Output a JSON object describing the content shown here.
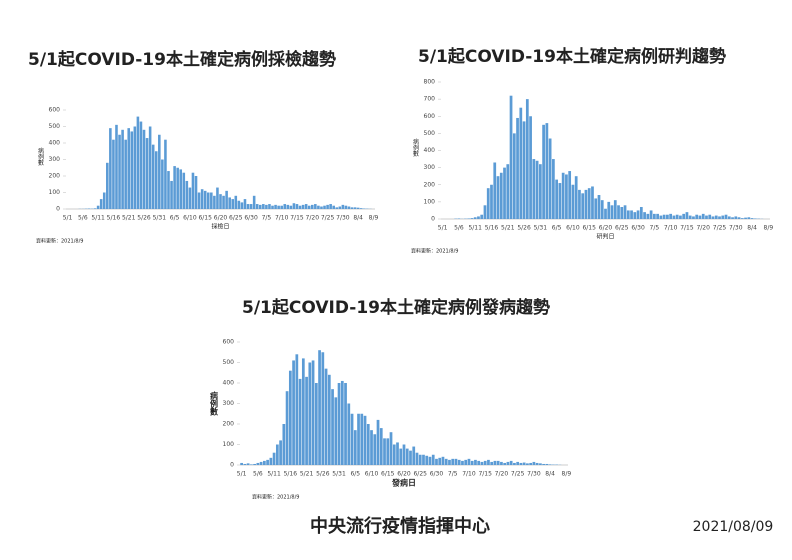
{
  "chart_data": [
    {
      "type": "bar",
      "title": "5/1起COVID-19本土確定病例採檢趨勢",
      "xlabel": "採檢日",
      "ylabel": "病例數",
      "note": "資料更新：2021/8/9",
      "color": "#5b9bd5",
      "categories": [
        "5/1",
        null,
        null,
        null,
        null,
        "5/6",
        null,
        null,
        null,
        null,
        "5/11",
        null,
        null,
        null,
        null,
        "5/16",
        null,
        null,
        null,
        null,
        "5/21",
        null,
        null,
        null,
        null,
        "5/26",
        null,
        null,
        null,
        null,
        "5/31",
        null,
        null,
        null,
        null,
        "6/5",
        null,
        null,
        null,
        null,
        "6/10",
        null,
        null,
        null,
        null,
        "6/15",
        null,
        null,
        null,
        null,
        "6/20",
        null,
        null,
        null,
        null,
        "6/25",
        null,
        null,
        null,
        null,
        "6/30",
        null,
        null,
        null,
        null,
        "7/5",
        null,
        null,
        null,
        null,
        "7/10",
        null,
        null,
        null,
        null,
        "7/15",
        null,
        null,
        null,
        null,
        "7/20",
        null,
        null,
        null,
        null,
        "7/25",
        null,
        null,
        null,
        null,
        "7/30",
        null,
        null,
        null,
        null,
        "8/4",
        null,
        null,
        null,
        null,
        "8/9"
      ],
      "values": [
        0,
        0,
        0,
        0,
        1,
        1,
        2,
        3,
        2,
        4,
        20,
        60,
        100,
        280,
        490,
        420,
        510,
        450,
        480,
        420,
        490,
        470,
        500,
        560,
        530,
        480,
        430,
        500,
        390,
        350,
        450,
        300,
        420,
        230,
        170,
        260,
        250,
        240,
        220,
        170,
        130,
        220,
        200,
        100,
        120,
        110,
        100,
        100,
        80,
        130,
        90,
        80,
        110,
        70,
        60,
        80,
        50,
        40,
        60,
        30,
        30,
        80,
        30,
        25,
        30,
        25,
        30,
        20,
        25,
        20,
        20,
        30,
        25,
        20,
        35,
        30,
        20,
        25,
        30,
        20,
        25,
        30,
        20,
        15,
        20,
        25,
        30,
        20,
        10,
        15,
        25,
        20,
        15,
        10,
        10,
        8,
        5,
        3,
        2,
        1,
        0
      ],
      "ylim": [
        0,
        600
      ],
      "yticks": [
        0,
        100,
        200,
        300,
        400,
        500,
        600
      ]
    },
    {
      "type": "bar",
      "title": "5/1起COVID-19本土確定病例研判趨勢",
      "xlabel": "研判日",
      "ylabel": "病例數",
      "note": "資料更新：2021/8/9",
      "color": "#5b9bd5",
      "categories": [
        "5/1",
        null,
        null,
        null,
        null,
        "5/6",
        null,
        null,
        null,
        null,
        "5/11",
        null,
        null,
        null,
        null,
        "5/16",
        null,
        null,
        null,
        null,
        "5/21",
        null,
        null,
        null,
        null,
        "5/26",
        null,
        null,
        null,
        null,
        "5/31",
        null,
        null,
        null,
        null,
        "6/5",
        null,
        null,
        null,
        null,
        "6/10",
        null,
        null,
        null,
        null,
        "6/15",
        null,
        null,
        null,
        null,
        "6/20",
        null,
        null,
        null,
        null,
        "6/25",
        null,
        null,
        null,
        null,
        "6/30",
        null,
        null,
        null,
        null,
        "7/5",
        null,
        null,
        null,
        null,
        "7/10",
        null,
        null,
        null,
        null,
        "7/15",
        null,
        null,
        null,
        null,
        "7/20",
        null,
        null,
        null,
        null,
        "7/25",
        null,
        null,
        null,
        null,
        "7/30",
        null,
        null,
        null,
        null,
        "8/4",
        null,
        null,
        null,
        null,
        "8/9"
      ],
      "values": [
        0,
        0,
        0,
        0,
        2,
        3,
        1,
        2,
        3,
        5,
        10,
        15,
        25,
        80,
        180,
        200,
        330,
        250,
        270,
        300,
        320,
        720,
        500,
        590,
        650,
        570,
        700,
        600,
        350,
        340,
        320,
        550,
        560,
        470,
        350,
        230,
        210,
        270,
        260,
        280,
        200,
        250,
        170,
        150,
        170,
        180,
        190,
        120,
        140,
        110,
        60,
        100,
        80,
        110,
        80,
        70,
        80,
        50,
        50,
        40,
        50,
        70,
        40,
        30,
        50,
        30,
        30,
        20,
        25,
        25,
        30,
        20,
        25,
        20,
        30,
        40,
        20,
        15,
        25,
        20,
        30,
        20,
        25,
        15,
        20,
        15,
        20,
        25,
        15,
        10,
        15,
        10,
        5,
        8,
        10,
        5,
        3,
        2,
        1,
        0,
        0
      ],
      "ylim": [
        0,
        800
      ],
      "yticks": [
        0,
        100,
        200,
        300,
        400,
        500,
        600,
        700,
        800
      ]
    },
    {
      "type": "bar",
      "title": "5/1起COVID-19本土確定病例發病趨勢",
      "xlabel": "發病日",
      "ylabel": "病例數",
      "note": "資料更新：2021/8/9",
      "color": "#5b9bd5",
      "categories": [
        "5/1",
        null,
        null,
        null,
        null,
        "5/6",
        null,
        null,
        null,
        null,
        "5/11",
        null,
        null,
        null,
        null,
        "5/16",
        null,
        null,
        null,
        null,
        "5/21",
        null,
        null,
        null,
        null,
        "5/26",
        null,
        null,
        null,
        null,
        "5/31",
        null,
        null,
        null,
        null,
        "6/5",
        null,
        null,
        null,
        null,
        "6/10",
        null,
        null,
        null,
        null,
        "6/15",
        null,
        null,
        null,
        null,
        "6/20",
        null,
        null,
        null,
        null,
        "6/25",
        null,
        null,
        null,
        null,
        "6/30",
        null,
        null,
        null,
        null,
        "7/5",
        null,
        null,
        null,
        null,
        "7/10",
        null,
        null,
        null,
        null,
        "7/15",
        null,
        null,
        null,
        null,
        "7/20",
        null,
        null,
        null,
        null,
        "7/25",
        null,
        null,
        null,
        null,
        "7/30",
        null,
        null,
        null,
        null,
        "8/4",
        null,
        null,
        null,
        null,
        "8/9"
      ],
      "values": [
        10,
        5,
        8,
        3,
        5,
        10,
        15,
        20,
        25,
        35,
        60,
        100,
        120,
        200,
        360,
        460,
        510,
        540,
        420,
        520,
        430,
        500,
        510,
        400,
        560,
        550,
        470,
        440,
        370,
        330,
        400,
        410,
        400,
        300,
        250,
        170,
        250,
        250,
        240,
        200,
        170,
        150,
        220,
        180,
        130,
        130,
        160,
        100,
        110,
        80,
        100,
        80,
        70,
        90,
        60,
        50,
        50,
        45,
        40,
        50,
        30,
        35,
        40,
        30,
        25,
        30,
        30,
        25,
        20,
        25,
        30,
        20,
        25,
        20,
        15,
        20,
        25,
        15,
        20,
        20,
        15,
        10,
        15,
        20,
        10,
        15,
        10,
        12,
        8,
        10,
        15,
        10,
        8,
        5,
        5,
        3,
        2,
        2,
        1,
        0,
        0
      ],
      "ylim": [
        0,
        600
      ],
      "yticks": [
        0,
        100,
        200,
        300,
        400,
        500,
        600
      ]
    }
  ],
  "footer": {
    "org": "中央流行疫情指揮中心",
    "date": "2021/08/09"
  }
}
